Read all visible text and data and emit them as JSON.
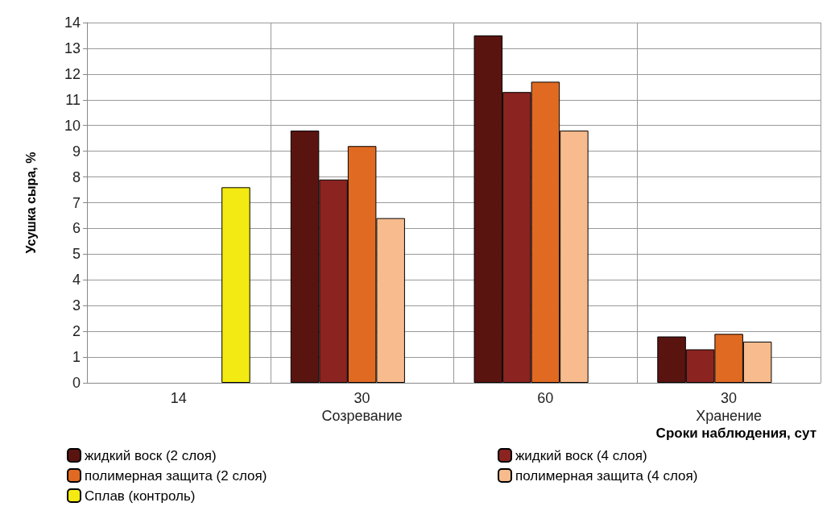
{
  "chart_data": {
    "type": "bar",
    "ylabel": "Усушка сыра, %",
    "xlabel": "Сроки наблюдения, сут",
    "categories": [
      "14",
      "30\nСозревание",
      "60",
      "30\nХранение"
    ],
    "series": [
      {
        "name": "жидкий воск (2 слоя)",
        "color": "#5a1410",
        "values": [
          null,
          9.8,
          13.5,
          1.8
        ]
      },
      {
        "name": "жидкий воск (4 слоя)",
        "color": "#8b2320",
        "values": [
          null,
          7.9,
          11.3,
          1.3
        ]
      },
      {
        "name": "полимерная защита (2 слоя)",
        "color": "#e06a22",
        "values": [
          null,
          9.2,
          11.7,
          1.9
        ]
      },
      {
        "name": "полимерная защита (4 слоя)",
        "color": "#f7bb8d",
        "values": [
          null,
          6.4,
          9.8,
          1.6
        ]
      },
      {
        "name": "Сплав (контроль)",
        "color": "#f2ea12",
        "values": [
          7.6,
          null,
          null,
          null
        ]
      }
    ],
    "ylim": [
      0,
      14
    ],
    "yticks": [
      0,
      1,
      2,
      3,
      4,
      5,
      6,
      7,
      8,
      9,
      10,
      11,
      12,
      13,
      14
    ],
    "grid": true,
    "legend": "bottom"
  }
}
